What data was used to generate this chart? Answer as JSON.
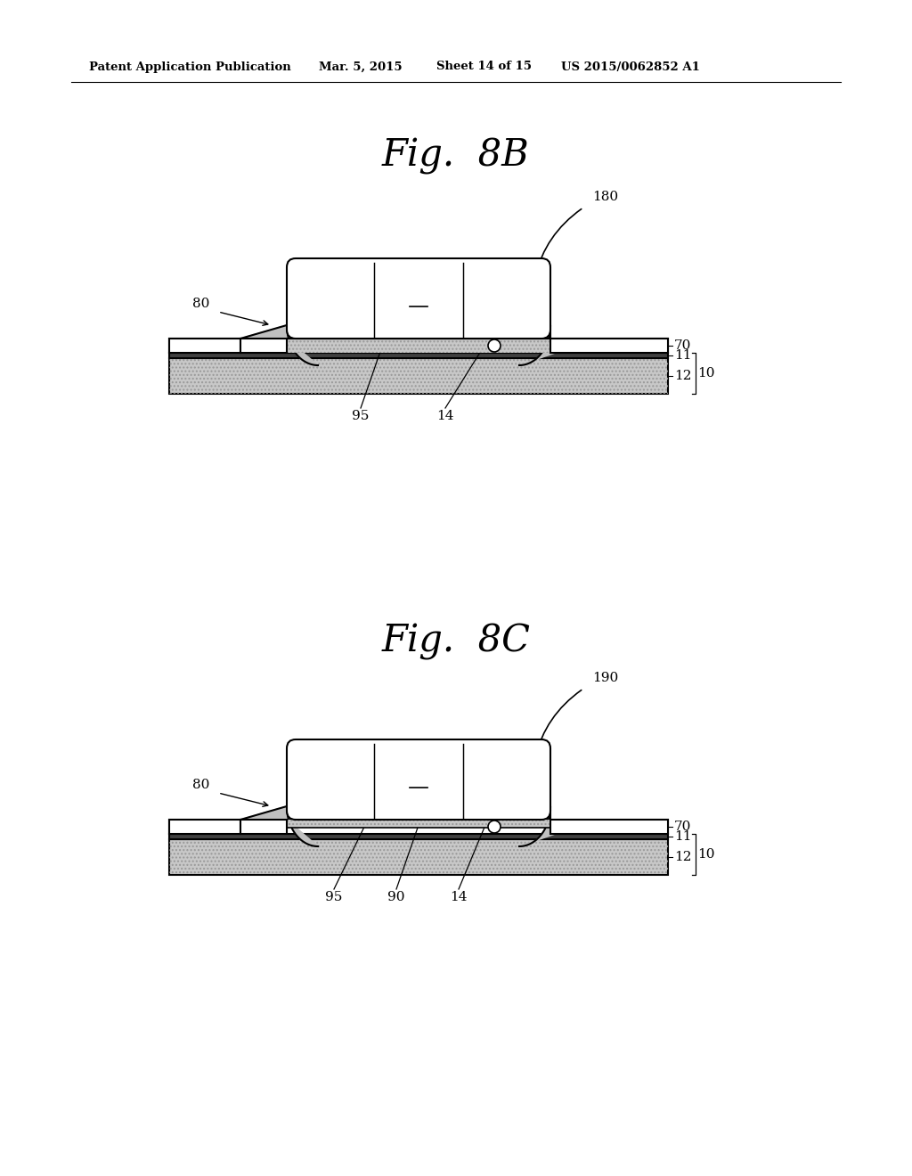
{
  "background_color": "#ffffff",
  "header_text": "Patent Application Publication",
  "header_date": "Mar. 5, 2015",
  "header_sheet": "Sheet 14 of 15",
  "header_patent": "US 2015/0062852 A1",
  "fig8b_title": "Fig.  8B",
  "fig8c_title": "Fig.  8C",
  "line_color": "#000000",
  "fill_white": "#ffffff",
  "fill_light_gray": "#c8c8c8",
  "fill_dark": "#404040",
  "fill_fillet": "#c0c0c0"
}
